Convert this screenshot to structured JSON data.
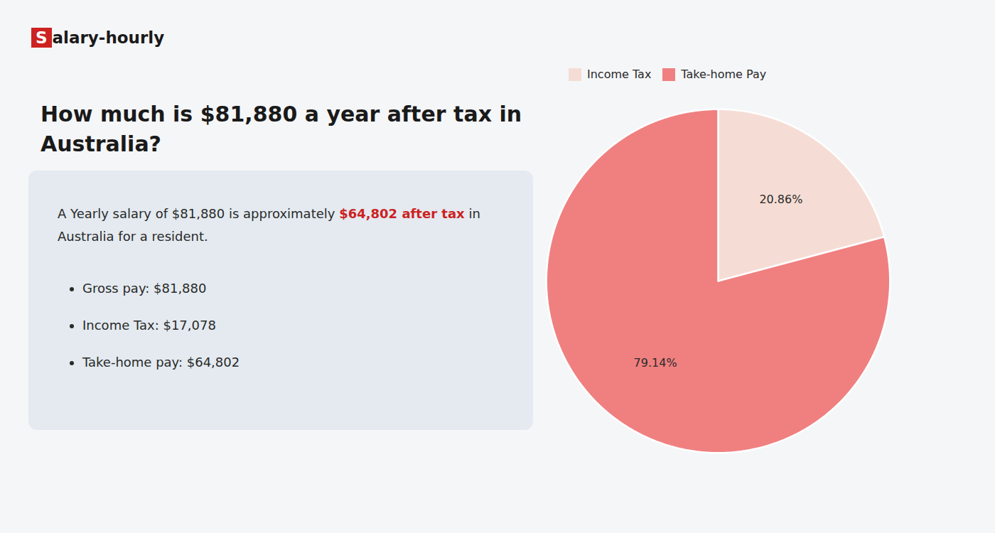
{
  "chart_data": {
    "type": "pie",
    "title": "How much is $81,880 a year after tax in\nAustralia?",
    "categories": [
      "Income Tax",
      "Take-home Pay"
    ],
    "values": [
      20.86,
      79.14
    ],
    "value_labels": [
      "20.86%",
      "79.14%"
    ],
    "colors": [
      "#f5ddd5",
      "#f08080"
    ],
    "data_labels": true,
    "legend": "top",
    "annotations": [
      "S",
      "alary-hourly",
      "A Yearly salary of $81,880 is approximately ",
      "$64,802 after tax",
      " in",
      "Australia for a resident.",
      "Gross pay: $81,880",
      "Income Tax: $17,078",
      "Take-home pay: $64,802"
    ]
  }
}
